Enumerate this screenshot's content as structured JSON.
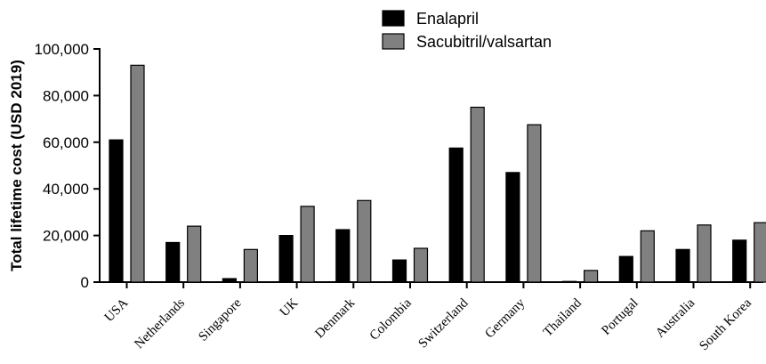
{
  "chart_data": {
    "type": "bar",
    "title": "",
    "xlabel": "",
    "ylabel": "Total lifetime cost (USD 2019)",
    "ylim": [
      0,
      100000
    ],
    "yticks": [
      "0",
      "20,000",
      "40,000",
      "60,000",
      "80,000",
      "100,000"
    ],
    "grid": false,
    "legend_position": "top",
    "categories": [
      "USA",
      "Netherlands",
      "Singapore",
      "UK",
      "Denmark",
      "Colombia",
      "Switzerland",
      "Germany",
      "Thailand",
      "Portugal",
      "Australia",
      "South Korea"
    ],
    "series": [
      {
        "name": "Enalapril",
        "color": "#000000",
        "values": [
          61000,
          17000,
          1500,
          20000,
          22500,
          9500,
          57500,
          47000,
          300,
          11000,
          14000,
          18000
        ]
      },
      {
        "name": "Sacubitril/valsartan",
        "color": "#808080",
        "values": [
          93000,
          24000,
          14000,
          32500,
          35000,
          14500,
          75000,
          67500,
          5000,
          22000,
          24500,
          25500
        ]
      }
    ]
  }
}
